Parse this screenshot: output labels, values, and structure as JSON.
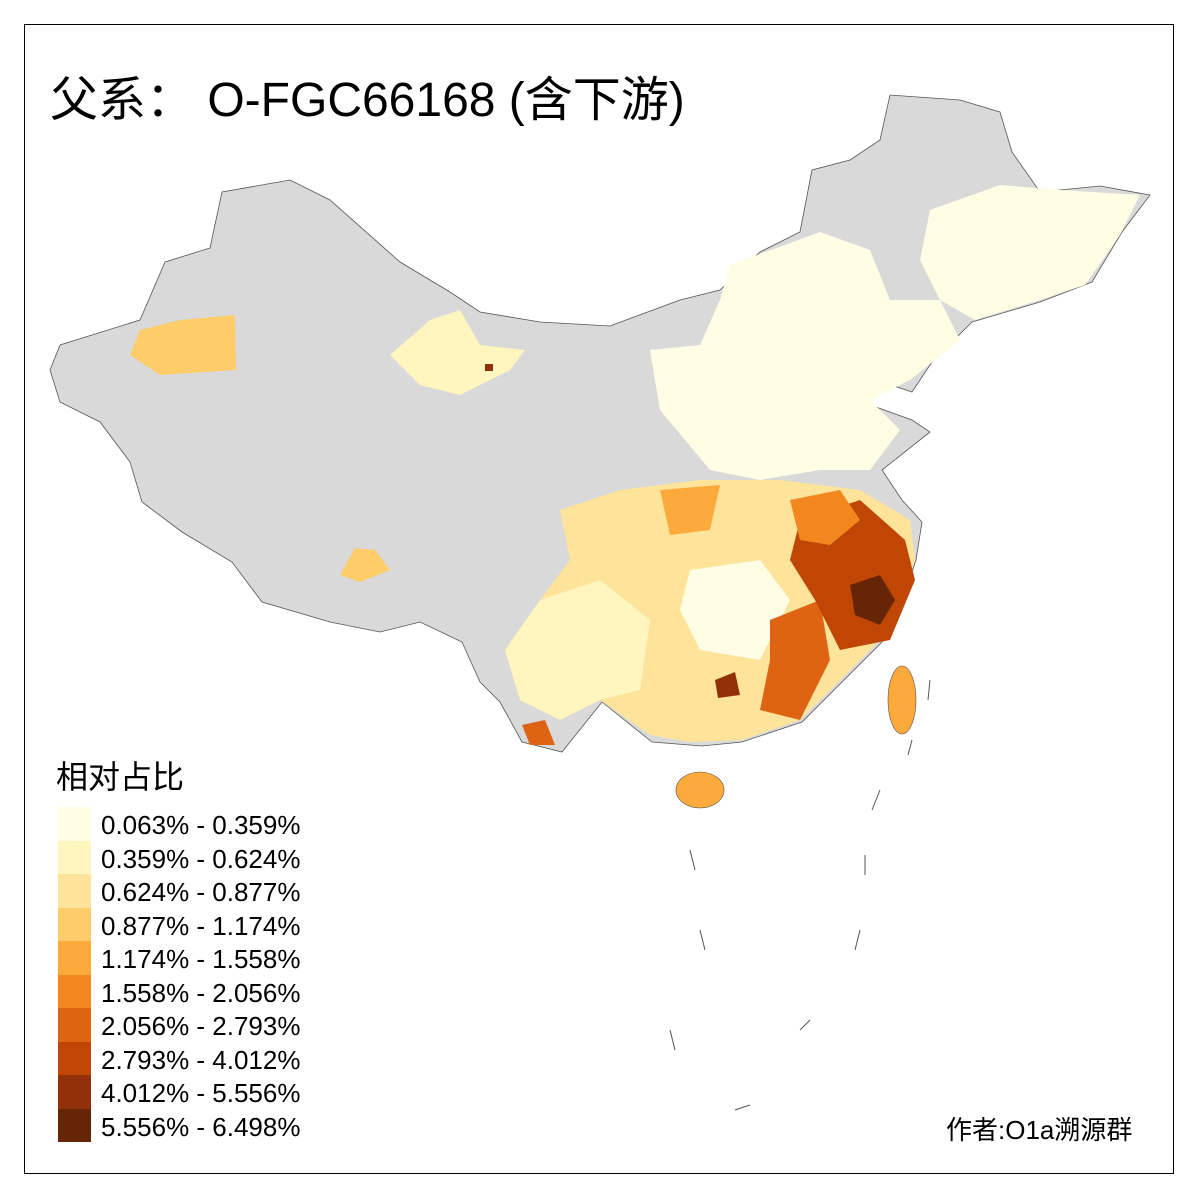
{
  "title": "父系： O-FGC66168 (含下游)",
  "legend": {
    "title": "相对占比",
    "items": [
      {
        "label": "0.063% - 0.359%",
        "color": "#FFFDE4"
      },
      {
        "label": "0.359% - 0.624%",
        "color": "#FFF5BF"
      },
      {
        "label": "0.624% - 0.877%",
        "color": "#FEE39A"
      },
      {
        "label": "0.877% - 1.174%",
        "color": "#FECD6A"
      },
      {
        "label": "1.174% - 1.558%",
        "color": "#FDAA3C"
      },
      {
        "label": "1.558% - 2.056%",
        "color": "#F3871F"
      },
      {
        "label": "2.056% - 2.793%",
        "color": "#DE6312"
      },
      {
        "label": "2.793% - 4.012%",
        "color": "#BF4604"
      },
      {
        "label": "4.012% - 5.556%",
        "color": "#92300A"
      },
      {
        "label": "5.556% - 6.498%",
        "color": "#662506"
      }
    ]
  },
  "no_data_color": "#D9D9D9",
  "author": "作者:O1a溯源群"
}
